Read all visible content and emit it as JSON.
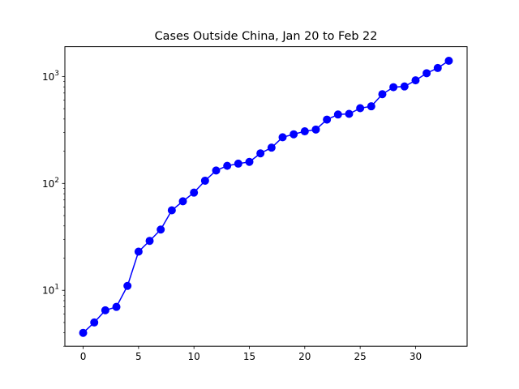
{
  "chart_data": {
    "type": "line",
    "title": "Cases Outside China, Jan 20 to Feb 22",
    "xlabel": "",
    "ylabel": "",
    "xscale": "linear",
    "yscale": "log",
    "xlim": [
      -1.65,
      34.65
    ],
    "ylim": [
      3.0,
      1900
    ],
    "xticks": [
      0,
      5,
      10,
      15,
      20,
      25,
      30
    ],
    "xtick_labels": [
      "0",
      "5",
      "10",
      "15",
      "20",
      "25",
      "30"
    ],
    "yticks": [
      10,
      100,
      1000
    ],
    "ytick_labels": [
      {
        "base": "10",
        "exp": "1"
      },
      {
        "base": "10",
        "exp": "2"
      },
      {
        "base": "10",
        "exp": "3"
      }
    ],
    "grid": false,
    "legend": false,
    "series": [
      {
        "color": "#0000ff",
        "marker": "circle",
        "x": [
          0,
          1,
          2,
          3,
          4,
          5,
          6,
          7,
          8,
          9,
          10,
          11,
          12,
          13,
          14,
          15,
          16,
          17,
          18,
          19,
          20,
          21,
          22,
          23,
          24,
          25,
          26,
          27,
          28,
          29,
          30,
          31,
          32,
          33
        ],
        "values": [
          4,
          5,
          6.5,
          7,
          11,
          23,
          29,
          37,
          56,
          68,
          82,
          106,
          132,
          146,
          153,
          159,
          191,
          216,
          270,
          288,
          307,
          319,
          395,
          441,
          447,
          505,
          526,
          683,
          794,
          807,
          920,
          1073,
          1200,
          1402
        ]
      }
    ]
  }
}
